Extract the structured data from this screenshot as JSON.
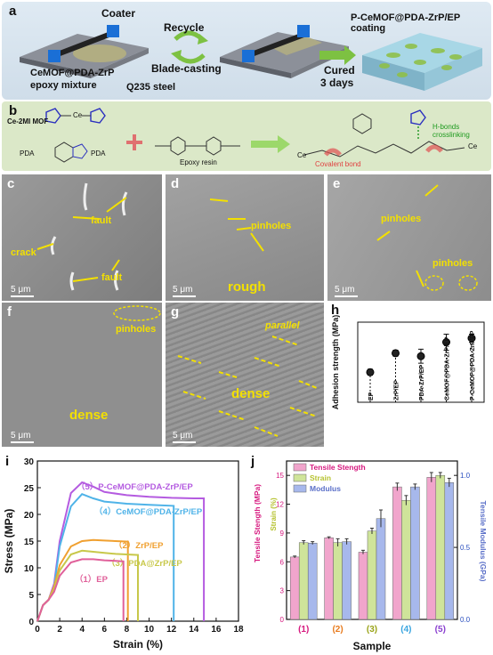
{
  "panel_a": {
    "label": "a",
    "coater": "Coater",
    "mixture_line1": "CeMOF@PDA-ZrP",
    "mixture_line2": "epoxy mixture",
    "recycle": "Recycle",
    "blade": "Blade-casting",
    "steel": "Q235 steel",
    "cured_line1": "Cured",
    "cured_line2": "3 days",
    "coating": "P-CeMOF@PDA-ZrP/EP coating"
  },
  "panel_b": {
    "label": "b",
    "mof": "Ce-2MI MOF",
    "pda": "PDA",
    "pda_group": "PDA",
    "epoxy": "Epoxy resin",
    "hbond": "H-bonds crosslinking",
    "covalent": "Covalent bond",
    "ce": "Ce",
    "ce2": "Ce",
    "ce3": "Ce"
  },
  "sem": {
    "scale": "5 μm",
    "c": {
      "label": "c",
      "fault1": "fault",
      "crack": "crack",
      "fault2": "fault"
    },
    "d": {
      "label": "d",
      "pinholes": "pinholes",
      "rough": "rough"
    },
    "e": {
      "label": "e",
      "pinholes1": "pinholes",
      "pinholes2": "pinholes"
    },
    "f": {
      "label": "f",
      "pinholes": "pinholes",
      "dense": "dense"
    },
    "g": {
      "label": "g",
      "parallel": "parallel",
      "dense": "dense"
    }
  },
  "panel_h": {
    "label": "h",
    "chart_data": {
      "type": "scatter",
      "ylabel": "Adhesion strength (MPa)",
      "categories": [
        "EP",
        "ZrP/EP",
        "PDA-ZrP/EP",
        "CeMOF@PDA-ZrP/EP",
        "P-CeMOF@PDA-ZrP/EP"
      ],
      "values": [
        3.0,
        4.9,
        4.6,
        6.0,
        6.4
      ],
      "errors": [
        0.3,
        0.3,
        0.7,
        0.8,
        0.4
      ]
    }
  },
  "panel_i": {
    "label": "i",
    "chart_data": {
      "type": "line",
      "xlabel": "Strain (%)",
      "ylabel": "Stress (MPa)",
      "xlim": [
        0,
        18
      ],
      "ylim": [
        0,
        30
      ],
      "xticks": [
        "0",
        "2",
        "4",
        "6",
        "8",
        "10",
        "12",
        "14",
        "16",
        "18"
      ],
      "yticks": [
        "0",
        "5",
        "10",
        "15",
        "20",
        "25",
        "30"
      ],
      "series": [
        {
          "name": "（5）P-CeMOF@PDA-ZrP/EP",
          "color": "#b45be0",
          "x": [
            0,
            0.5,
            1,
            1.5,
            2,
            3,
            4,
            5,
            6,
            8,
            10,
            12,
            14,
            14.9,
            14.9
          ],
          "y": [
            0,
            3,
            4,
            7,
            15,
            24,
            26,
            25.2,
            24.2,
            23.6,
            23.3,
            23.1,
            23.0,
            23.0,
            0
          ]
        },
        {
          "name": "（4）CeMOF@PDA-ZrP/EP",
          "color": "#4fb3e8",
          "x": [
            0,
            0.5,
            1,
            1.5,
            2,
            3,
            4,
            5,
            6,
            8,
            10,
            12.2,
            12.2
          ],
          "y": [
            0,
            3,
            4,
            6.5,
            14,
            21.5,
            23.8,
            23.0,
            22.4,
            22.0,
            21.8,
            21.6,
            0
          ]
        },
        {
          "name": "（2）ZrP/EP",
          "color": "#f0a030",
          "x": [
            0,
            0.5,
            1,
            1.5,
            2,
            3,
            4,
            5,
            6,
            7,
            8.1,
            8.1
          ],
          "y": [
            0,
            3,
            4,
            6.5,
            10.5,
            14,
            15,
            15.2,
            15.1,
            15.0,
            14.9,
            0
          ]
        },
        {
          "name": "（3）PDA@ZrP/EP",
          "color": "#c8c84a",
          "x": [
            0,
            0.5,
            1,
            1.5,
            2,
            3,
            4,
            5,
            6,
            7,
            8,
            9.0,
            9.0
          ],
          "y": [
            0,
            3,
            4,
            6,
            9.5,
            12.5,
            13.2,
            13.0,
            12.8,
            12.6,
            12.5,
            12.4,
            0
          ]
        },
        {
          "name": "（1）EP",
          "color": "#e0609a",
          "x": [
            0,
            0.5,
            1,
            1.5,
            2,
            3,
            4,
            5,
            6,
            7,
            7.7,
            7.7
          ],
          "y": [
            0,
            3,
            4,
            5.5,
            8.5,
            11,
            11.6,
            11.6,
            11.4,
            11.3,
            11.2,
            0
          ]
        }
      ]
    }
  },
  "panel_j": {
    "label": "j",
    "chart_data": {
      "type": "bar",
      "xlabel": "Sample",
      "ylabel_left1": "Tensile Stength (MPa)",
      "ylabel_left2": "Strain (%)",
      "ylabel_right": "Tensile Modulus (GPa)",
      "categories": [
        "(1)",
        "(2)",
        "(3)",
        "(4)",
        "(5)"
      ],
      "category_colors": [
        "#d6197f",
        "#e87b1e",
        "#9aa31a",
        "#3aa5e0",
        "#8a3fd0"
      ],
      "left_ticks": [
        "0",
        "3",
        "6",
        "9",
        "12",
        "15"
      ],
      "right_ticks": [
        "0.0",
        "0.5",
        "1.0"
      ],
      "legend": [
        "Tensile Stength",
        "Strain",
        "Modulus"
      ],
      "legend_colors": [
        "#f1a5cc",
        "#cfe49a",
        "#a7b8ec"
      ],
      "series": [
        {
          "name": "Tensile Stength",
          "values": [
            6.5,
            8.5,
            7.0,
            13.8,
            14.8
          ],
          "errors": [
            0.1,
            0.1,
            0.2,
            0.4,
            0.5
          ]
        },
        {
          "name": "Strain",
          "values": [
            8.0,
            8.0,
            9.2,
            12.4,
            15.0
          ],
          "errors": [
            0.2,
            0.4,
            0.3,
            0.5,
            0.3
          ]
        },
        {
          "name": "Modulus",
          "values": [
            0.53,
            0.54,
            0.7,
            0.92,
            0.95
          ],
          "errors": [
            0.01,
            0.02,
            0.06,
            0.02,
            0.03
          ]
        }
      ],
      "left_max": 16.5,
      "right_max": 1.1
    }
  }
}
